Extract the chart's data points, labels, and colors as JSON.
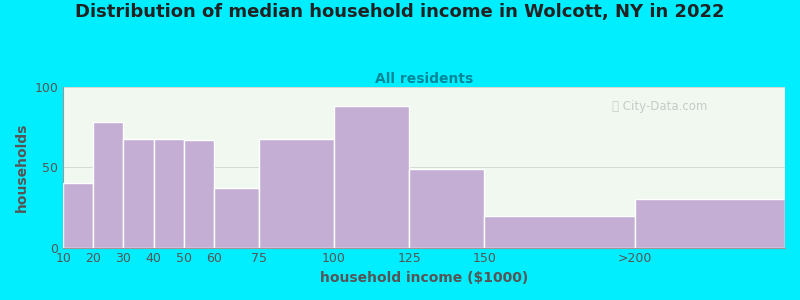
{
  "title": "Distribution of median household income in Wolcott, NY in 2022",
  "subtitle": "All residents",
  "xlabel": "household income ($1000)",
  "ylabel": "households",
  "bin_edges": [
    10,
    20,
    30,
    40,
    50,
    60,
    75,
    100,
    125,
    150,
    200,
    250
  ],
  "bin_labels": [
    "10",
    "20",
    "30",
    "40",
    "50",
    "60",
    "75",
    "100",
    "125",
    "150",
    ">200"
  ],
  "values": [
    40,
    78,
    68,
    68,
    67,
    37,
    68,
    88,
    49,
    20,
    30
  ],
  "bar_color": "#c4aed4",
  "bar_edgecolor": "#ffffff",
  "background_outer": "#00eeff",
  "background_inner": "#f0f8f0",
  "title_color": "#222222",
  "subtitle_color": "#008899",
  "axis_label_color": "#555555",
  "tick_color": "#555555",
  "ylim": [
    0,
    100
  ],
  "yticks": [
    0,
    50,
    100
  ],
  "title_fontsize": 13,
  "subtitle_fontsize": 10,
  "label_fontsize": 10,
  "tick_fontsize": 9
}
